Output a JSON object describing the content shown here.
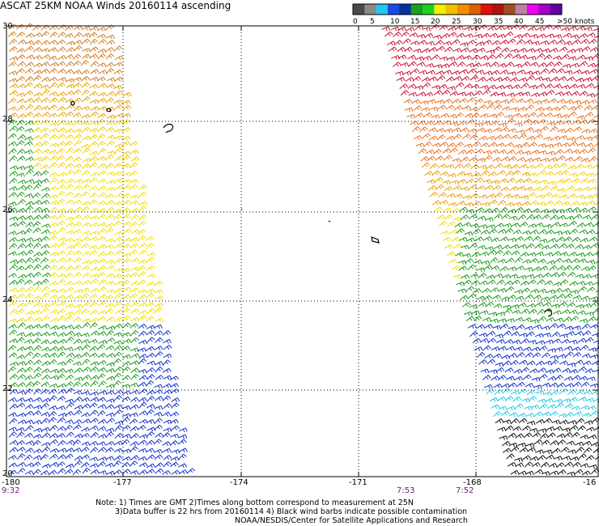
{
  "title": "ASCAT 25KM NOAA Winds 20160114 ascending",
  "legend": {
    "labels": [
      "0",
      "5",
      "10",
      "15",
      "20",
      "25",
      "30",
      "35",
      "40",
      "45",
      ">50 knots"
    ],
    "colors": [
      "#4a4a4a",
      "#8a8a8a",
      "#1ec8f0",
      "#1a4be0",
      "#0a30a0",
      "#1aa01a",
      "#20d020",
      "#f0f000",
      "#f0c000",
      "#f09000",
      "#e06000",
      "#e01010",
      "#b01010",
      "#a05020",
      "#c080a0",
      "#f000f0",
      "#a000c8",
      "#6000a0"
    ]
  },
  "axes": {
    "lon_ticks": [
      "-180",
      "-177",
      "-174",
      "-171",
      "-168",
      "-16"
    ],
    "lat_ticks": [
      "30",
      "28",
      "26",
      "24",
      "22",
      "20"
    ]
  },
  "times": [
    "9:32",
    "7:53",
    "7:52"
  ],
  "notes": [
    "Note: 1) Times are GMT 2)Times along bottom correspond to measurement at 25N",
    "3)Data buffer is 22 hrs from 20160114 4) Black wind barbs indicate possible contamination",
    "NOAA/NESDIS/Center for Satellite Applications and Research"
  ],
  "swaths": [
    {
      "name": "west",
      "bands": [
        {
          "color": "#d07a20"
        },
        {
          "color": "#e8a000"
        },
        {
          "color": "#f0d000"
        },
        {
          "color": "#1a9a1a"
        },
        {
          "color": "#f0e000"
        },
        {
          "color": "#1a9a1a"
        },
        {
          "color": "#1030c8"
        },
        {
          "color": "#1aa0e0"
        }
      ]
    },
    {
      "name": "east",
      "bands": [
        {
          "color": "#c81030"
        },
        {
          "color": "#e87020"
        },
        {
          "color": "#e8a000"
        },
        {
          "color": "#f0e000"
        },
        {
          "color": "#1a9a1a"
        },
        {
          "color": "#1030c8"
        },
        {
          "color": "#20c8e8"
        },
        {
          "color": "#111111"
        }
      ]
    }
  ]
}
